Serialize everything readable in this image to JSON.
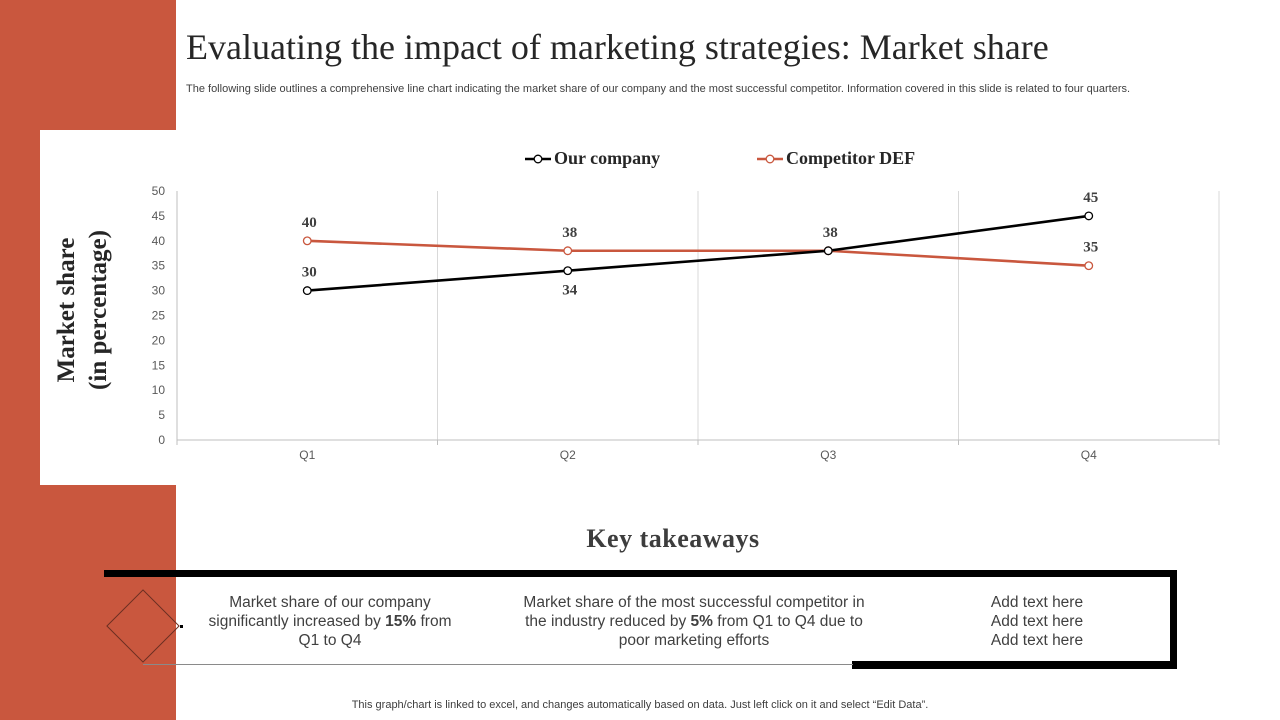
{
  "slide": {
    "title": "Evaluating the impact of marketing strategies: Market share",
    "subtitle": "The following slide outlines a comprehensive line chart indicating the market share of our company and the most successful competitor. Information covered in this slide is related to four quarters.",
    "footer": "This graph/chart is linked to excel, and changes automatically based on data. Just left click on it and select “Edit Data”."
  },
  "colors": {
    "accent": "#c9573e",
    "our_company": "#000000",
    "competitor": "#c9573e",
    "grid": "#d9d9d9",
    "axis": "#bfbfbf"
  },
  "chart_data": {
    "type": "line",
    "categories": [
      "Q1",
      "Q2",
      "Q3",
      "Q4"
    ],
    "series": [
      {
        "name": "Our company",
        "values": [
          30,
          34,
          38,
          45
        ],
        "label_pos": [
          "above",
          "below",
          "above",
          "above"
        ]
      },
      {
        "name": "Competitor DEF",
        "values": [
          40,
          38,
          38,
          35
        ],
        "label_pos": [
          "above",
          "above",
          "none",
          "above"
        ]
      }
    ],
    "ylabel_lines": [
      "Market share",
      "(in percentage)"
    ],
    "xlabel": "",
    "ylim": [
      0,
      50
    ],
    "yticks": [
      0,
      5,
      10,
      15,
      20,
      25,
      30,
      35,
      40,
      45,
      50
    ],
    "grid": true,
    "legend": "top-center"
  },
  "takeaways": {
    "heading": "Key takeaways",
    "item1": {
      "pre": "Market share of our company significantly increased by ",
      "bold": "15%",
      "post": " from Q1 to Q4"
    },
    "item2": {
      "pre": "Market share of the most successful competitor in the industry  reduced by ",
      "bold": "5%",
      "post": " from Q1 to Q4 due to poor marketing efforts"
    },
    "item3": {
      "line1": "Add text here",
      "line2": "Add text here",
      "line3": "Add text here"
    }
  }
}
